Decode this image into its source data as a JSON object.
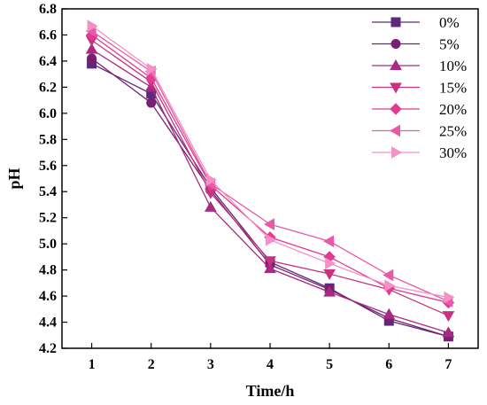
{
  "chart_data": {
    "type": "line",
    "title": "",
    "xlabel": "Time/h",
    "ylabel": "pH",
    "x": [
      1,
      2,
      3,
      4,
      5,
      6,
      7
    ],
    "xlim": [
      0.5,
      7.5
    ],
    "ylim": [
      4.2,
      6.8
    ],
    "xticks": [
      "1",
      "2",
      "3",
      "4",
      "5",
      "6",
      "7"
    ],
    "yticks": [
      "4.2",
      "4.4",
      "4.6",
      "4.8",
      "5.0",
      "5.2",
      "5.4",
      "5.6",
      "5.8",
      "6.0",
      "6.2",
      "6.4",
      "6.6",
      "6.8"
    ],
    "grid": false,
    "legend_position": "top-right",
    "series": [
      {
        "name": "0%",
        "color": "#5c2a7a",
        "marker": "square",
        "values": [
          6.38,
          6.15,
          5.43,
          4.86,
          4.66,
          4.41,
          4.29
        ]
      },
      {
        "name": "5%",
        "color": "#7a1f6e",
        "marker": "circle",
        "values": [
          6.42,
          6.08,
          5.41,
          4.84,
          4.65,
          4.43,
          4.29
        ]
      },
      {
        "name": "10%",
        "color": "#a82a82",
        "marker": "triangle-up",
        "values": [
          6.49,
          6.2,
          5.28,
          4.81,
          4.63,
          4.46,
          4.32
        ]
      },
      {
        "name": "15%",
        "color": "#c8327e",
        "marker": "triangle-down",
        "values": [
          6.56,
          6.24,
          5.39,
          4.87,
          4.77,
          4.65,
          4.45
        ]
      },
      {
        "name": "20%",
        "color": "#e03c92",
        "marker": "diamond",
        "values": [
          6.6,
          6.27,
          5.45,
          5.05,
          4.9,
          4.66,
          4.55
        ]
      },
      {
        "name": "25%",
        "color": "#e85aa6",
        "marker": "triangle-left",
        "values": [
          6.63,
          6.32,
          5.46,
          5.15,
          5.02,
          4.76,
          4.56
        ]
      },
      {
        "name": "30%",
        "color": "#f590c4",
        "marker": "triangle-right",
        "values": [
          6.67,
          6.34,
          5.49,
          5.03,
          4.85,
          4.68,
          4.59
        ]
      }
    ]
  }
}
